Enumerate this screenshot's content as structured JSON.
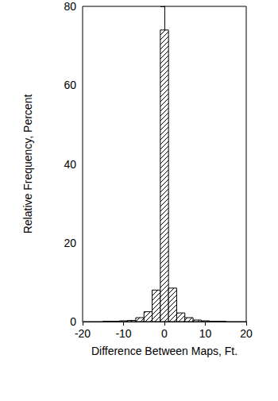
{
  "chart_data": {
    "type": "histogram",
    "xlabel": "Difference Between Maps, Ft.",
    "ylabel": "Relative Frequency, Percent",
    "bins": [
      -15,
      -13,
      -11,
      -9,
      -7,
      -5,
      -3,
      -1,
      1,
      3,
      5,
      7,
      9,
      11,
      13,
      15
    ],
    "values": [
      0.1,
      0.1,
      0.2,
      0.3,
      1.0,
      2.5,
      8.0,
      74,
      8.5,
      2.2,
      1.0,
      0.4,
      0.2,
      0.1,
      0.1
    ],
    "color": "#000000",
    "xlim": [
      -20,
      20
    ],
    "xticks": [
      -20,
      -10,
      0,
      10,
      20
    ],
    "ylim": [
      0,
      80
    ],
    "yticks": [
      0,
      20,
      40,
      60,
      80
    ],
    "grid": false
  }
}
